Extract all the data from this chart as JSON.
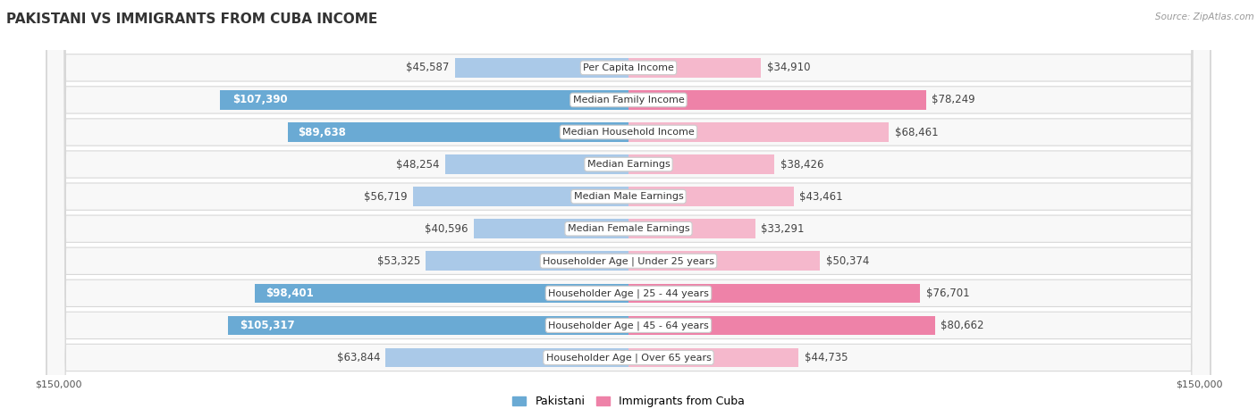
{
  "title": "PAKISTANI VS IMMIGRANTS FROM CUBA INCOME",
  "source": "Source: ZipAtlas.com",
  "categories": [
    "Per Capita Income",
    "Median Family Income",
    "Median Household Income",
    "Median Earnings",
    "Median Male Earnings",
    "Median Female Earnings",
    "Householder Age | Under 25 years",
    "Householder Age | 25 - 44 years",
    "Householder Age | 45 - 64 years",
    "Householder Age | Over 65 years"
  ],
  "pakistani_values": [
    45587,
    107390,
    89638,
    48254,
    56719,
    40596,
    53325,
    98401,
    105317,
    63844
  ],
  "cuba_values": [
    34910,
    78249,
    68461,
    38426,
    43461,
    33291,
    50374,
    76701,
    80662,
    44735
  ],
  "pakistani_labels": [
    "$45,587",
    "$107,390",
    "$89,638",
    "$48,254",
    "$56,719",
    "$40,596",
    "$53,325",
    "$98,401",
    "$105,317",
    "$63,844"
  ],
  "cuba_labels": [
    "$34,910",
    "$78,249",
    "$68,461",
    "$38,426",
    "$43,461",
    "$33,291",
    "$50,374",
    "$76,701",
    "$80,662",
    "$44,735"
  ],
  "max_value": 150000,
  "pakistani_color_light": "#aac9e8",
  "pakistani_color_dark": "#6aaad4",
  "cuba_color_light": "#f5b8cc",
  "cuba_color_dark": "#ee82a8",
  "background_color": "#ffffff",
  "row_border_color": "#d8d8d8",
  "title_fontsize": 11,
  "label_fontsize": 8.5,
  "cat_fontsize": 8,
  "bar_height": 0.6,
  "xlim": 150000,
  "tick_fontsize": 8,
  "legend_fontsize": 9,
  "white_label_threshold": 70000
}
